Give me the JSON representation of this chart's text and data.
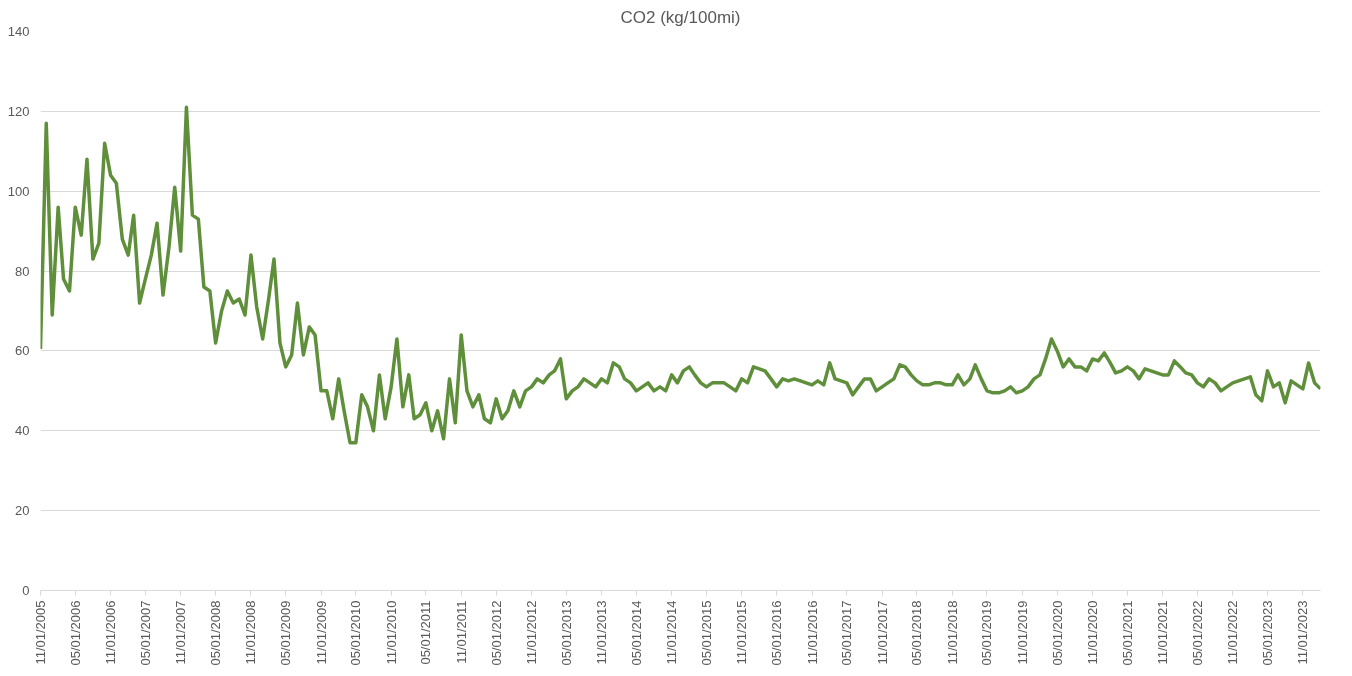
{
  "chart_data": {
    "type": "line",
    "title": "CO2 (kg/100mi)",
    "x": [
      "2005-11",
      "2005-12",
      "2006-01",
      "2006-02",
      "2006-03",
      "2006-04",
      "2006-05",
      "2006-06",
      "2006-07",
      "2006-08",
      "2006-09",
      "2006-10",
      "2006-11",
      "2006-12",
      "2007-01",
      "2007-02",
      "2007-03",
      "2007-04",
      "2007-05",
      "2007-06",
      "2007-07",
      "2007-08",
      "2007-09",
      "2007-10",
      "2007-11",
      "2007-12",
      "2008-01",
      "2008-02",
      "2008-03",
      "2008-04",
      "2008-05",
      "2008-06",
      "2008-07",
      "2008-08",
      "2008-09",
      "2008-10",
      "2008-11",
      "2008-12",
      "2009-01",
      "2009-02",
      "2009-03",
      "2009-04",
      "2009-05",
      "2009-06",
      "2009-07",
      "2009-08",
      "2009-09",
      "2009-10",
      "2009-11",
      "2009-12",
      "2010-01",
      "2010-02",
      "2010-03",
      "2010-04",
      "2010-05",
      "2010-06",
      "2010-07",
      "2010-08",
      "2010-09",
      "2010-10",
      "2010-11",
      "2010-12",
      "2011-01",
      "2011-02",
      "2011-03",
      "2011-04",
      "2011-05",
      "2011-06",
      "2011-07",
      "2011-08",
      "2011-09",
      "2011-10",
      "2011-11",
      "2011-12",
      "2012-01",
      "2012-02",
      "2012-03",
      "2012-04",
      "2012-05",
      "2012-06",
      "2012-07",
      "2012-08",
      "2012-09",
      "2012-10",
      "2012-11",
      "2012-12",
      "2013-01",
      "2013-02",
      "2013-03",
      "2013-04",
      "2013-05",
      "2013-06",
      "2013-07",
      "2013-08",
      "2013-09",
      "2013-10",
      "2013-11",
      "2013-12",
      "2014-01",
      "2014-02",
      "2014-03",
      "2014-04",
      "2014-05",
      "2014-06",
      "2014-07",
      "2014-08",
      "2014-09",
      "2014-10",
      "2014-11",
      "2014-12",
      "2015-01",
      "2015-02",
      "2015-03",
      "2015-04",
      "2015-05",
      "2015-06",
      "2015-07",
      "2015-08",
      "2015-09",
      "2015-10",
      "2015-11",
      "2015-12",
      "2016-01",
      "2016-02",
      "2016-03",
      "2016-04",
      "2016-05",
      "2016-06",
      "2016-07",
      "2016-08",
      "2016-09",
      "2016-10",
      "2016-11",
      "2016-12",
      "2017-01",
      "2017-02",
      "2017-03",
      "2017-04",
      "2017-05",
      "2017-06",
      "2017-07",
      "2017-08",
      "2017-09",
      "2017-10",
      "2017-11",
      "2017-12",
      "2018-01",
      "2018-02",
      "2018-03",
      "2018-04",
      "2018-05",
      "2018-06",
      "2018-07",
      "2018-08",
      "2018-09",
      "2018-10",
      "2018-11",
      "2018-12",
      "2019-01",
      "2019-02",
      "2019-03",
      "2019-04",
      "2019-05",
      "2019-06",
      "2019-07",
      "2019-08",
      "2019-09",
      "2019-10",
      "2019-11",
      "2019-12",
      "2020-01",
      "2020-02",
      "2020-03",
      "2020-04",
      "2020-05",
      "2020-06",
      "2020-07",
      "2020-08",
      "2020-09",
      "2020-10",
      "2020-11",
      "2020-12",
      "2021-01",
      "2021-02",
      "2021-03",
      "2021-04",
      "2021-05",
      "2021-06",
      "2021-07",
      "2021-08",
      "2021-09",
      "2021-10",
      "2021-11",
      "2021-12",
      "2022-01",
      "2022-02",
      "2022-03",
      "2022-04",
      "2022-05",
      "2022-06",
      "2022-07",
      "2022-08",
      "2022-09",
      "2022-10",
      "2022-11",
      "2022-12",
      "2023-01",
      "2023-02",
      "2023-03",
      "2023-04",
      "2023-05",
      "2023-06",
      "2023-07",
      "2023-08",
      "2023-09",
      "2023-10",
      "2023-11",
      "2023-12",
      "2024-01",
      "2024-02"
    ],
    "series": [
      {
        "color": "#5f8f3b",
        "values": [
          60.5,
          117,
          69,
          96,
          78,
          75,
          96,
          89,
          108,
          83,
          87,
          112,
          104,
          102,
          88,
          84,
          94,
          72,
          78,
          84,
          92,
          74,
          86,
          101,
          85,
          121,
          94,
          93,
          76,
          75,
          62,
          70,
          75,
          72,
          73,
          69,
          84,
          71,
          63,
          73,
          83,
          62,
          56,
          59,
          72,
          59,
          66,
          64,
          50,
          50,
          43,
          53,
          45,
          37,
          37,
          49,
          46,
          40,
          54,
          43,
          51,
          63,
          46,
          54,
          43,
          44,
          47,
          40,
          45,
          38,
          53,
          42,
          64,
          50,
          46,
          49,
          43,
          42,
          48,
          43,
          45,
          50,
          46,
          50,
          51,
          53,
          52,
          54,
          55,
          58,
          48,
          50,
          51,
          53,
          52,
          51,
          53,
          52,
          57,
          56,
          53,
          52,
          50,
          51,
          52,
          50,
          51,
          50,
          54,
          52,
          55,
          56,
          54,
          52,
          51,
          52,
          52,
          52,
          51,
          50,
          53,
          52,
          56,
          55.5,
          55,
          53,
          51,
          53,
          52.5,
          53,
          52.5,
          52,
          51.5,
          52.5,
          51.5,
          57,
          53,
          52.5,
          52,
          49,
          51,
          53,
          53,
          50,
          51,
          52,
          53,
          56.5,
          56,
          54,
          52.5,
          51.5,
          51.5,
          52,
          52,
          51.5,
          51.5,
          54,
          51.5,
          53,
          56.5,
          53,
          50,
          49.5,
          49.5,
          50,
          51,
          49.5,
          50,
          51,
          53,
          54,
          58,
          63,
          60,
          56,
          58,
          56,
          56,
          55,
          58,
          57.5,
          59.5,
          57,
          54.5,
          55,
          56,
          55,
          53,
          55.5,
          55,
          54.5,
          54,
          54,
          57.5,
          56,
          54.5,
          54,
          52,
          51,
          53,
          52,
          50,
          51,
          52,
          52.5,
          53,
          53.5,
          49,
          47.5,
          55,
          51,
          52,
          47,
          52.5,
          51.5,
          50.5,
          57,
          52,
          50.5
        ]
      }
    ],
    "xlim": [
      "2005-11",
      "2024-02"
    ],
    "xticks": [
      {
        "value": "2005-11",
        "label": "11/01/2005"
      },
      {
        "value": "2006-05",
        "label": "05/01/2006"
      },
      {
        "value": "2006-11",
        "label": "11/01/2006"
      },
      {
        "value": "2007-05",
        "label": "05/01/2007"
      },
      {
        "value": "2007-11",
        "label": "11/01/2007"
      },
      {
        "value": "2008-05",
        "label": "05/01/2008"
      },
      {
        "value": "2008-11",
        "label": "11/01/2008"
      },
      {
        "value": "2009-05",
        "label": "05/01/2009"
      },
      {
        "value": "2009-11",
        "label": "11/01/2009"
      },
      {
        "value": "2010-05",
        "label": "05/01/2010"
      },
      {
        "value": "2010-11",
        "label": "11/01/2010"
      },
      {
        "value": "2011-05",
        "label": "05/01/2011"
      },
      {
        "value": "2011-11",
        "label": "11/01/2011"
      },
      {
        "value": "2012-05",
        "label": "05/01/2012"
      },
      {
        "value": "2012-11",
        "label": "11/01/2012"
      },
      {
        "value": "2013-05",
        "label": "05/01/2013"
      },
      {
        "value": "2013-11",
        "label": "11/01/2013"
      },
      {
        "value": "2014-05",
        "label": "05/01/2014"
      },
      {
        "value": "2014-11",
        "label": "11/01/2014"
      },
      {
        "value": "2015-05",
        "label": "05/01/2015"
      },
      {
        "value": "2015-11",
        "label": "11/01/2015"
      },
      {
        "value": "2016-05",
        "label": "05/01/2016"
      },
      {
        "value": "2016-11",
        "label": "11/01/2016"
      },
      {
        "value": "2017-05",
        "label": "05/01/2017"
      },
      {
        "value": "2017-11",
        "label": "11/01/2017"
      },
      {
        "value": "2018-05",
        "label": "05/01/2018"
      },
      {
        "value": "2018-11",
        "label": "11/01/2018"
      },
      {
        "value": "2019-05",
        "label": "05/01/2019"
      },
      {
        "value": "2019-11",
        "label": "11/01/2019"
      },
      {
        "value": "2020-05",
        "label": "05/01/2020"
      },
      {
        "value": "2020-11",
        "label": "11/01/2020"
      },
      {
        "value": "2021-05",
        "label": "05/01/2021"
      },
      {
        "value": "2021-11",
        "label": "11/01/2021"
      },
      {
        "value": "2022-05",
        "label": "05/01/2022"
      },
      {
        "value": "2022-11",
        "label": "11/01/2022"
      },
      {
        "value": "2023-05",
        "label": "05/01/2023"
      },
      {
        "value": "2023-11",
        "label": "11/01/2023"
      }
    ],
    "ylim": [
      0,
      140
    ],
    "yticks": [
      0,
      20,
      40,
      60,
      80,
      100,
      120,
      140
    ],
    "grid": "y",
    "line_style": "solid"
  }
}
